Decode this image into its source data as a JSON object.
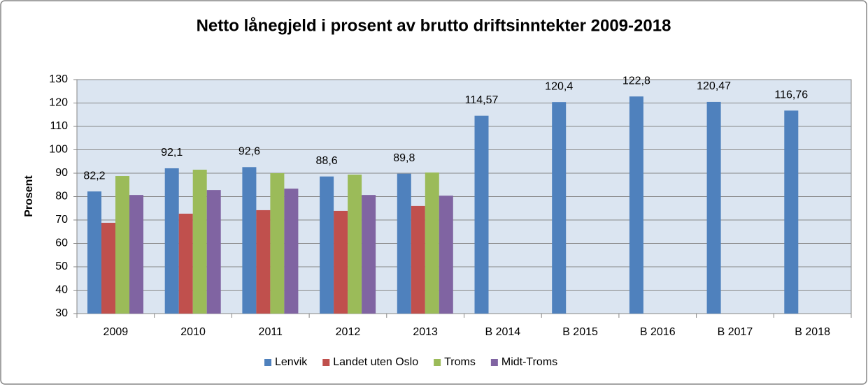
{
  "chart_data": {
    "type": "bar",
    "title": "Netto lånegjeld i prosent av brutto driftsinntekter 2009-2018",
    "y_label": "Prosent",
    "categories": [
      "2009",
      "2010",
      "2011",
      "2012",
      "2013",
      "B 2014",
      "B 2015",
      "B 2016",
      "B 2017",
      "B 2018"
    ],
    "series": [
      {
        "name": "Lenvik",
        "color": "#4f81bd",
        "values": [
          82.2,
          92.1,
          92.6,
          88.6,
          89.8,
          114.57,
          120.4,
          122.8,
          120.47,
          116.76
        ],
        "value_labels": [
          "82,2",
          "92,1",
          "92,6",
          "88,6",
          "89,8",
          "114,57",
          "120,4",
          "122,8",
          "120,47",
          "116,76"
        ]
      },
      {
        "name": "Landet uten Oslo",
        "color": "#c0504d",
        "values": [
          68.8,
          72.7,
          74.2,
          73.9,
          76.0,
          null,
          null,
          null,
          null,
          null
        ]
      },
      {
        "name": "Troms",
        "color": "#9bbb59",
        "values": [
          88.8,
          91.5,
          90.0,
          89.4,
          90.3,
          null,
          null,
          null,
          null,
          null
        ]
      },
      {
        "name": "Midt-Troms",
        "color": "#8064a2",
        "values": [
          80.7,
          82.8,
          83.4,
          80.7,
          80.4,
          null,
          null,
          null,
          null,
          null
        ]
      }
    ],
    "ylim": [
      30,
      130
    ],
    "yticks": [
      30,
      40,
      50,
      60,
      70,
      80,
      90,
      100,
      110,
      120,
      130
    ],
    "grid": true,
    "legend": "bottom",
    "plot_background": "#dbe5f1"
  }
}
